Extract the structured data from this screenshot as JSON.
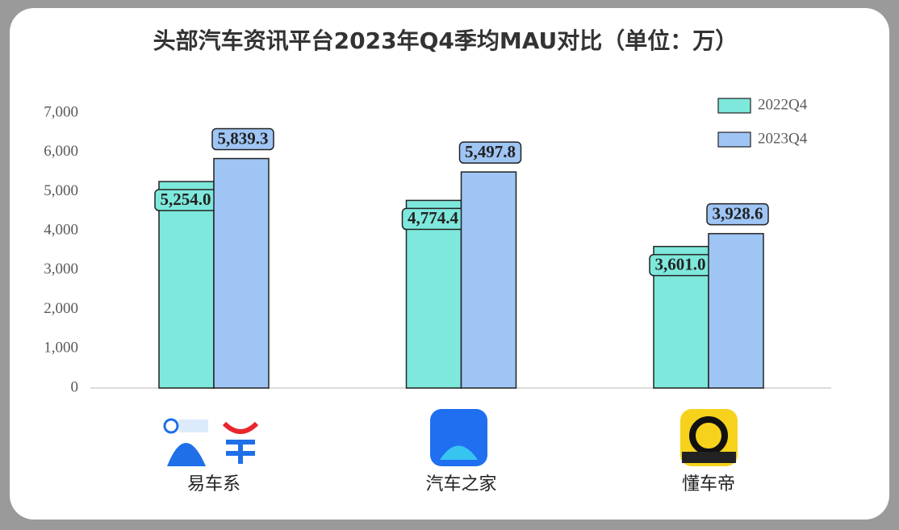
{
  "chart_data": {
    "type": "bar",
    "title": "头部汽车资讯平台2023年Q4季均MAU对比（单位：万）",
    "categories": [
      "易车系",
      "汽车之家",
      "懂车帝"
    ],
    "series": [
      {
        "name": "2022Q4",
        "color": "#7ee8dc",
        "values": [
          5254.0,
          4774.4,
          3601.0
        ],
        "value_labels": [
          "5,254.0",
          "4,774.4",
          "3,601.0"
        ]
      },
      {
        "name": "2023Q4",
        "color": "#9fc5f5",
        "values": [
          5839.3,
          5497.8,
          3928.6
        ],
        "value_labels": [
          "5,839.3",
          "5,497.8",
          "3,928.6"
        ]
      }
    ],
    "ylim": [
      0,
      7000
    ],
    "yticks": [
      0,
      {
        "value": 1000,
        "label": "1,000"
      },
      {
        "value": 2000,
        "label": "2,000"
      },
      {
        "value": 3000,
        "label": "3,000"
      },
      {
        "value": 4000,
        "label": "4,000"
      },
      {
        "value": 5000,
        "label": "5,000"
      },
      {
        "value": 6000,
        "label": "6,000"
      },
      {
        "value": 7000,
        "label": "7,000"
      }
    ],
    "legend": "top-right"
  }
}
